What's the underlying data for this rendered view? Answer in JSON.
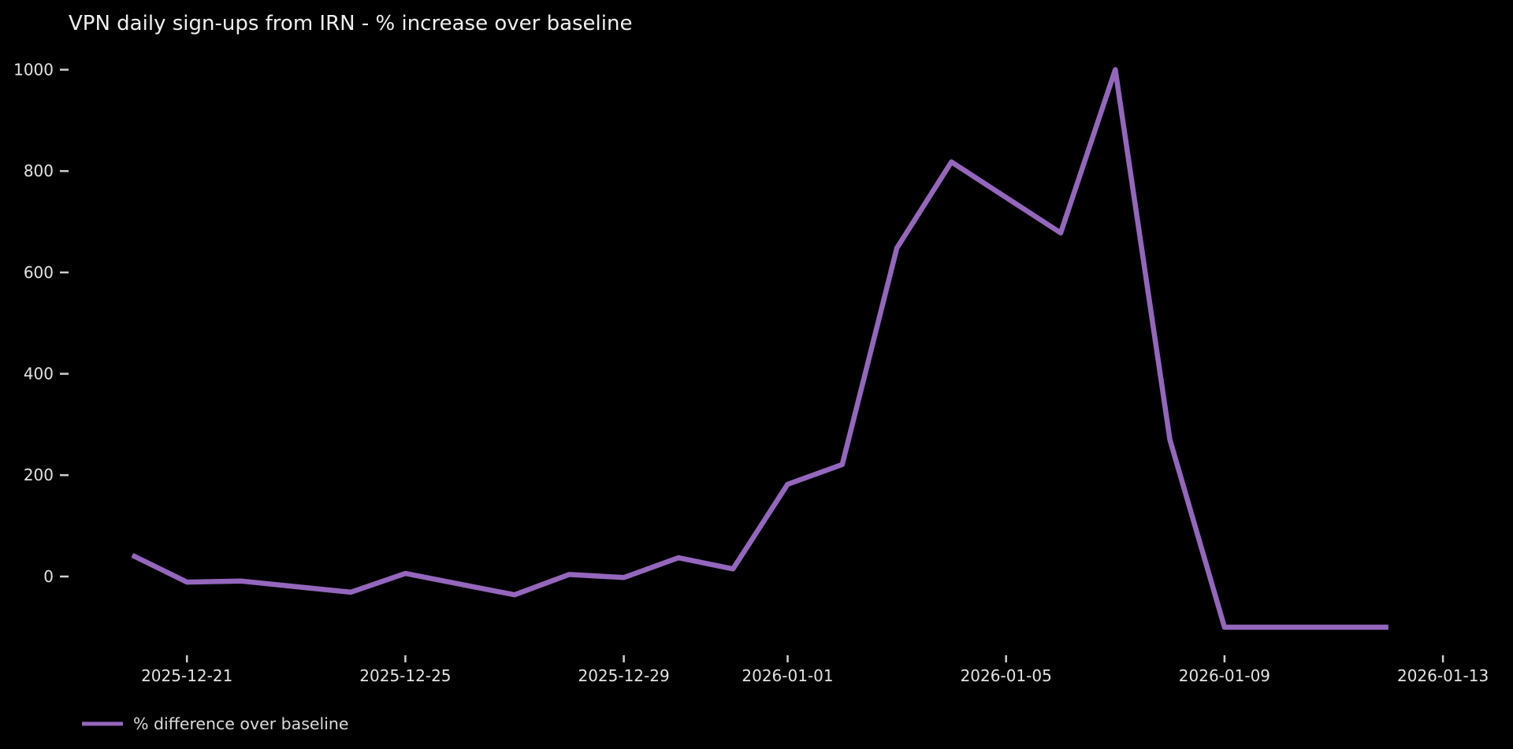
{
  "page": {
    "background_color": "#000000",
    "text_color": "#e2e2e2"
  },
  "chart_data": {
    "type": "line",
    "title": "VPN daily sign-ups from IRN - % increase over baseline",
    "xlabel": "",
    "ylabel": "",
    "grid": false,
    "legend_position": "bottom-left",
    "ylim": [
      -160,
      1060
    ],
    "yticks": [
      0,
      200,
      400,
      600,
      800,
      1000
    ],
    "xticks": [
      "2025-12-21",
      "2025-12-25",
      "2025-12-29",
      "2026-01-01",
      "2026-01-05",
      "2026-01-09",
      "2026-01-13"
    ],
    "series": [
      {
        "name": "% difference over baseline",
        "color": "#9467bd",
        "x": [
          "2025-12-20",
          "2025-12-21",
          "2025-12-22",
          "2025-12-23",
          "2025-12-24",
          "2025-12-25",
          "2025-12-26",
          "2025-12-27",
          "2025-12-28",
          "2025-12-29",
          "2025-12-30",
          "2025-12-31",
          "2026-01-01",
          "2026-01-02",
          "2026-01-03",
          "2026-01-04",
          "2026-01-05",
          "2026-01-06",
          "2026-01-07",
          "2026-01-08",
          "2026-01-09",
          "2026-01-10",
          "2026-01-11",
          "2026-01-12"
        ],
        "values": [
          42,
          -11,
          -9,
          -20,
          -31,
          6,
          -15,
          -36,
          4,
          -2,
          37,
          15,
          182,
          221,
          648,
          818,
          748,
          678,
          1000,
          270,
          -100,
          -100,
          -100,
          -100
        ]
      }
    ]
  }
}
